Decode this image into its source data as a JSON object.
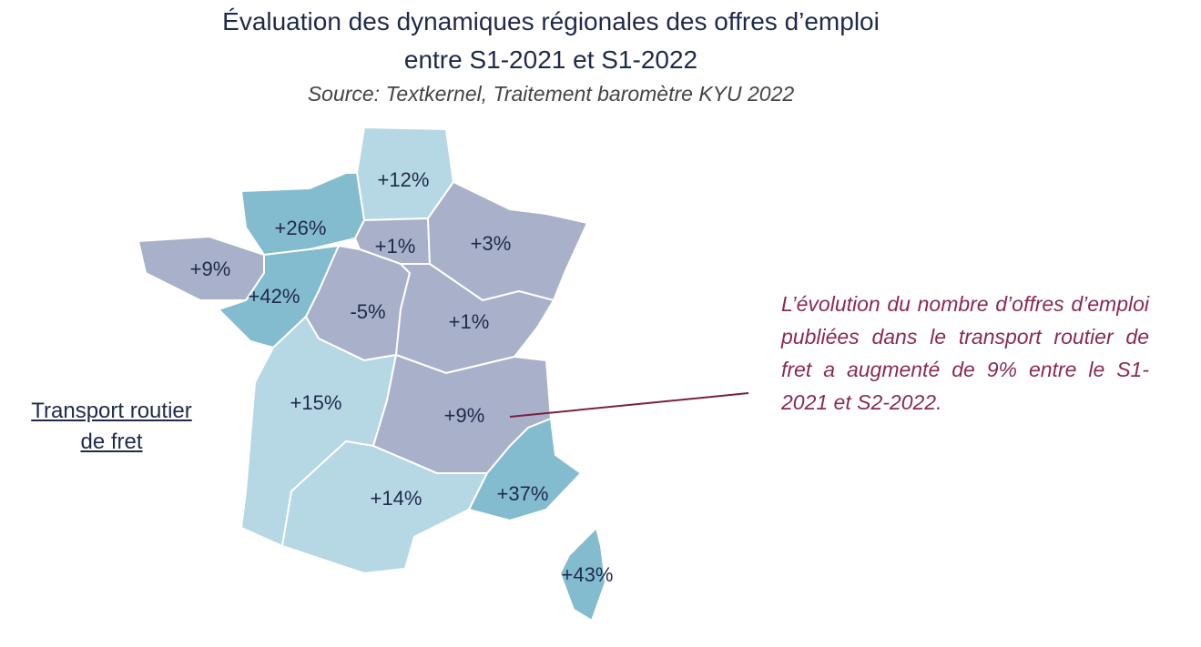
{
  "header": {
    "title": [
      "Évaluation des dynamiques régionales des offres d’emploi",
      "entre S1-2021 et S1-2022"
    ],
    "source": "Source: Textkernel, Traitement baromètre KYU 2022"
  },
  "side_label": "Transport routier de fret",
  "annotation": "L’évolution du nombre d’offres d’emploi publiées dans le transport routier de fret a augmenté de 9% entre le S1-2021 et S2-2022.",
  "regions": [
    {
      "label": "+12%",
      "color": "#b6d8e4"
    },
    {
      "label": "+26%",
      "color": "#84bccf"
    },
    {
      "label": "+1%",
      "color": "#a9b0c9"
    },
    {
      "label": "+3%",
      "color": "#a9b0c9"
    },
    {
      "label": "+9%",
      "color": "#a9b0c9"
    },
    {
      "label": "+42%",
      "color": "#84bccf"
    },
    {
      "label": "-5%",
      "color": "#a9b0c9"
    },
    {
      "label": "+1%",
      "color": "#a9b0c9"
    },
    {
      "label": "+15%",
      "color": "#b6d8e4"
    },
    {
      "label": "+9%",
      "color": "#a9b0c9"
    },
    {
      "label": "+14%",
      "color": "#b6d8e4"
    },
    {
      "label": "+37%",
      "color": "#84bccf"
    },
    {
      "label": "+43%",
      "color": "#84bccf"
    }
  ]
}
